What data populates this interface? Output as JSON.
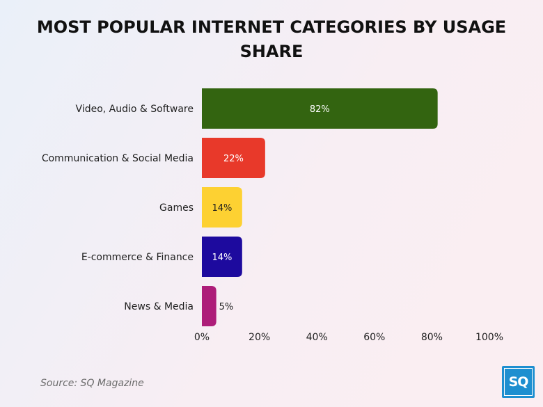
{
  "chart_data": {
    "type": "bar",
    "orientation": "horizontal",
    "title": "MOST POPULAR INTERNET CATEGORIES BY USAGE SHARE",
    "categories": [
      "Video, Audio & Software",
      "Communication & Social Media",
      "Games",
      "E-commerce & Finance",
      "News & Media"
    ],
    "values": [
      82,
      22,
      14,
      14,
      5
    ],
    "value_labels": [
      "82%",
      "22%",
      "14%",
      "14%",
      "5%"
    ],
    "colors": [
      "#336410",
      "#e8392a",
      "#fdd132",
      "#1d0a9e",
      "#ad1d79"
    ],
    "value_label_colors": [
      "#ffffff",
      "#ffffff",
      "#1f1f1f",
      "#ffffff",
      "#1f1f1f"
    ],
    "xlim": [
      0,
      100
    ],
    "xticks": [
      0,
      20,
      40,
      60,
      80,
      100
    ],
    "xtick_labels": [
      "0%",
      "20%",
      "40%",
      "60%",
      "80%",
      "100%"
    ],
    "grid": false,
    "legend": "none"
  },
  "source": "Source: SQ Magazine",
  "logo": {
    "text": "SQ",
    "color": "#1e8fd0"
  }
}
